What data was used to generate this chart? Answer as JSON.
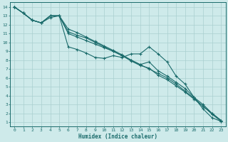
{
  "xlabel": "Humidex (Indice chaleur)",
  "xlim": [
    -0.5,
    23.5
  ],
  "ylim": [
    0.5,
    14.5
  ],
  "xticks": [
    0,
    1,
    2,
    3,
    4,
    5,
    6,
    7,
    8,
    9,
    10,
    11,
    12,
    13,
    14,
    15,
    16,
    17,
    18,
    19,
    20,
    21,
    22,
    23
  ],
  "yticks": [
    1,
    2,
    3,
    4,
    5,
    6,
    7,
    8,
    9,
    10,
    11,
    12,
    13,
    14
  ],
  "bg_color": "#ceeaea",
  "line_color": "#1a6b6b",
  "grid_color_major": "#aacfcf",
  "grid_color_minor": "#c4e4e4",
  "series": [
    {
      "x": [
        0,
        1,
        2,
        3,
        4,
        5,
        6,
        7,
        8,
        9,
        10,
        11,
        12,
        13,
        14,
        15,
        16,
        17,
        18,
        19,
        20,
        21,
        22,
        23
      ],
      "y": [
        14,
        13.3,
        12.5,
        12.2,
        13.0,
        13.0,
        11.2,
        10.8,
        10.5,
        10.0,
        9.5,
        9.0,
        8.5,
        8.0,
        7.5,
        7.0,
        6.5,
        6.0,
        5.3,
        4.5,
        3.7,
        2.8,
        2.0,
        1.2
      ]
    },
    {
      "x": [
        0,
        1,
        2,
        3,
        4,
        5,
        6,
        7,
        8,
        9,
        10,
        11,
        12,
        13,
        14,
        15,
        16,
        17,
        18,
        19,
        20,
        21,
        22,
        23
      ],
      "y": [
        14,
        13.3,
        12.5,
        12.2,
        13.0,
        13.0,
        9.5,
        9.2,
        8.8,
        8.3,
        8.2,
        8.5,
        8.3,
        8.7,
        8.7,
        9.5,
        8.7,
        7.8,
        6.2,
        5.3,
        3.8,
        2.5,
        1.5,
        1.1
      ]
    },
    {
      "x": [
        0,
        1,
        2,
        3,
        4,
        5,
        6,
        7,
        8,
        9,
        10,
        11,
        12,
        13,
        14,
        15,
        16,
        17,
        18,
        19,
        20,
        21,
        22,
        23
      ],
      "y": [
        14,
        13.3,
        12.5,
        12.2,
        12.8,
        13.0,
        11.5,
        11.1,
        10.6,
        10.1,
        9.6,
        9.1,
        8.6,
        8.0,
        7.5,
        7.8,
        6.8,
        6.2,
        5.5,
        4.8,
        3.8,
        3.0,
        2.0,
        1.2
      ]
    },
    {
      "x": [
        0,
        1,
        2,
        3,
        4,
        5,
        6,
        7,
        8,
        9,
        10,
        11,
        12,
        13,
        14,
        15,
        16,
        17,
        18,
        19,
        20,
        21,
        22,
        23
      ],
      "y": [
        14,
        13.3,
        12.5,
        12.2,
        13.0,
        13.0,
        11.0,
        10.6,
        10.2,
        9.8,
        9.4,
        9.0,
        8.5,
        7.9,
        7.4,
        7.1,
        6.3,
        5.8,
        5.1,
        4.4,
        3.6,
        2.8,
        1.9,
        1.1
      ]
    }
  ]
}
